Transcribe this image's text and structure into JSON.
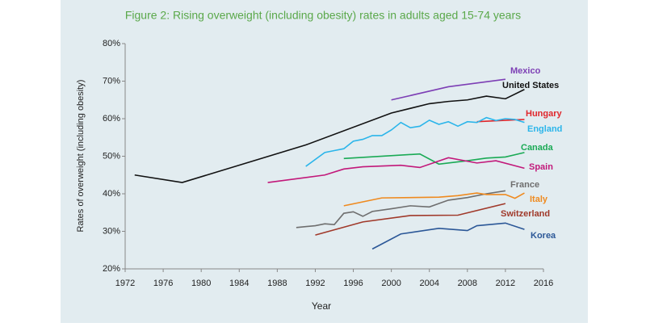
{
  "chart_data": {
    "type": "line",
    "title": "Figure 2: Rising overweight (including obesity) rates in adults aged 15-74 years",
    "x_label": "Year",
    "y_label": "Rates of overweight (including obesity)",
    "xlim": [
      1972,
      2016
    ],
    "xticks": [
      1972,
      1976,
      1980,
      1984,
      1988,
      1992,
      1996,
      2000,
      2004,
      2008,
      2012,
      2016
    ],
    "ylim": [
      20,
      80
    ],
    "yticks": [
      {
        "value": 20,
        "label": "20%"
      },
      {
        "value": 30,
        "label": "30%"
      },
      {
        "value": 40,
        "label": "40%"
      },
      {
        "value": 50,
        "label": "50%"
      },
      {
        "value": 60,
        "label": "60%"
      },
      {
        "value": 70,
        "label": "70%"
      },
      {
        "value": 80,
        "label": "80%"
      }
    ],
    "grid": false,
    "series": [
      {
        "name": "Mexico",
        "color": "#7d3fb5",
        "x": [
          2000,
          2006,
          2012
        ],
        "values": [
          65,
          68.5,
          70.5
        ]
      },
      {
        "name": "United States",
        "color": "#111111",
        "x": [
          1973,
          1978,
          1991,
          2000,
          2004,
          2006,
          2008,
          2010,
          2012,
          2014
        ],
        "values": [
          45,
          43,
          53,
          61.5,
          64,
          64.6,
          65,
          66,
          65.3,
          67.8
        ]
      },
      {
        "name": "Hungary",
        "color": "#e0262b",
        "x": [
          2009,
          2014
        ],
        "values": [
          59.2,
          59.8
        ]
      },
      {
        "name": "England",
        "color": "#2bb5ea",
        "x": [
          1991,
          1993,
          1994,
          1995,
          1996,
          1997,
          1998,
          1999,
          2000,
          2001,
          2002,
          2003,
          2004,
          2005,
          2006,
          2007,
          2008,
          2009,
          2010,
          2011,
          2012,
          2013,
          2014
        ],
        "values": [
          47.3,
          51,
          51.5,
          52,
          54,
          54.5,
          55.5,
          55.5,
          57,
          59,
          57.6,
          58,
          59.6,
          58.5,
          59.2,
          58,
          59.2,
          59,
          60.3,
          59.5,
          60,
          59.8,
          59
        ]
      },
      {
        "name": "Canada",
        "color": "#1aaa55",
        "x": [
          1995,
          2003,
          2005,
          2008,
          2010,
          2012,
          2014
        ],
        "values": [
          49.4,
          50.6,
          47.9,
          48.8,
          49.5,
          49.8,
          51
        ]
      },
      {
        "name": "Spain",
        "color": "#c2187a",
        "x": [
          1987,
          1993,
          1995,
          1997,
          2001,
          2003,
          2006,
          2009,
          2011,
          2014
        ],
        "values": [
          43,
          45,
          46.6,
          47.2,
          47.6,
          47,
          49.6,
          48.2,
          48.8,
          46.8
        ]
      },
      {
        "name": "France",
        "color": "#6e6e6e",
        "x": [
          1990,
          1992,
          1993,
          1994,
          1995,
          1996,
          1997,
          1998,
          2000,
          2002,
          2004,
          2006,
          2008,
          2010,
          2012
        ],
        "values": [
          31,
          31.5,
          32,
          31.8,
          34.8,
          35.2,
          34,
          35.3,
          36,
          36.8,
          36.5,
          38.3,
          39,
          40,
          40.8
        ]
      },
      {
        "name": "Italy",
        "color": "#ef8a1f",
        "x": [
          1995,
          1999,
          2005,
          2007,
          2009,
          2010,
          2012,
          2013,
          2014
        ],
        "values": [
          36.8,
          38.9,
          39.1,
          39.5,
          40.2,
          39.8,
          39.8,
          38.8,
          40.2
        ]
      },
      {
        "name": "Switzerland",
        "color": "#a0392a",
        "x": [
          1992,
          1997,
          2002,
          2007,
          2012
        ],
        "values": [
          29,
          32.5,
          34.2,
          34.3,
          37.4
        ]
      },
      {
        "name": "Korea",
        "color": "#2b5797",
        "x": [
          1998,
          2001,
          2005,
          2008,
          2009,
          2012,
          2014
        ],
        "values": [
          25.3,
          29.3,
          30.8,
          30.2,
          31.5,
          32.2,
          30.5
        ]
      }
    ]
  }
}
